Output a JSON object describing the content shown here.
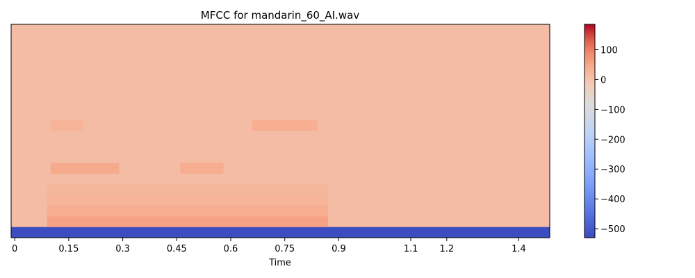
{
  "chart_data": {
    "type": "heatmap",
    "title": "MFCC for mandarin_60_AI.wav",
    "xlabel": "Time",
    "ylabel": "",
    "xlim": [
      -0.01,
      1.486
    ],
    "x_ticks": [
      0,
      0.15,
      0.3,
      0.45,
      0.6,
      0.75,
      0.9,
      1.1,
      1.2,
      1.4
    ],
    "x_tick_labels": [
      "0",
      "0.15",
      "0.3",
      "0.45",
      "0.6",
      "0.75",
      "0.9",
      "1.1",
      "1.2",
      "1.4"
    ],
    "y_axis_visible": false,
    "n_coefficients": 20,
    "colormap": "coolwarm",
    "colorbar": {
      "vmin": -530,
      "vmax": 185,
      "ticks": [
        100,
        0,
        -100,
        -200,
        -300,
        -400,
        -500
      ],
      "tick_labels": [
        "100",
        "0",
        "−100",
        "−200",
        "−300",
        "−400",
        "−500"
      ]
    },
    "values": {
      "background": 12,
      "coefficient_0": -528,
      "speech_region": [
        0.09,
        0.87
      ],
      "bands": [
        {
          "coefficient": 1,
          "x_range": [
            0.09,
            0.87
          ],
          "value": 55
        },
        {
          "coefficient": 2,
          "x_range": [
            0.09,
            0.87
          ],
          "value": 40
        },
        {
          "coefficient": 3,
          "x_range": [
            0.09,
            0.87
          ],
          "value": 28
        },
        {
          "coefficient": 4,
          "x_range": [
            0.09,
            0.87
          ],
          "value": 22
        },
        {
          "coefficient": 6,
          "x_range": [
            0.1,
            0.29
          ],
          "value": 45
        },
        {
          "coefficient": 6,
          "x_range": [
            0.46,
            0.58
          ],
          "value": 40
        },
        {
          "coefficient": 10,
          "x_range": [
            0.1,
            0.19
          ],
          "value": 30
        },
        {
          "coefficient": 10,
          "x_range": [
            0.66,
            0.84
          ],
          "value": 38
        }
      ]
    }
  }
}
